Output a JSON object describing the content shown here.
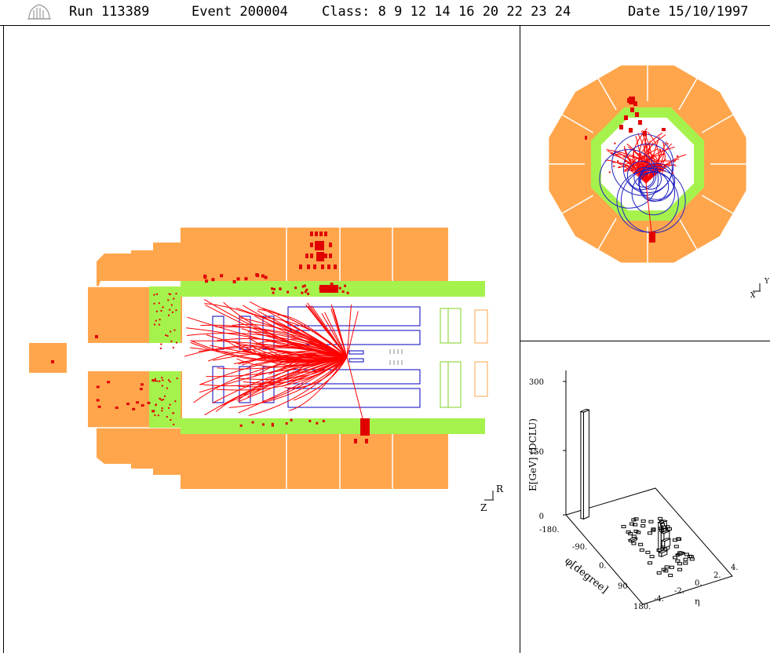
{
  "header": {
    "run": "Run 113389",
    "event": "Event 200004",
    "class": "Class: 8 9 12 14 16 20 22 23 24",
    "date": "Date 15/10/1997"
  },
  "colors": {
    "calorimeter": "#FFA64D",
    "inner_ring": "#A6F24D",
    "tracks": "#FF0000",
    "chambers": "#0000C0",
    "cells": "#E00000"
  },
  "icons": [
    "logo-icon"
  ],
  "rz_view": {
    "axis_vertical": "R",
    "axis_horizontal": "Z"
  },
  "xy_view": {
    "axis_vertical": "Y",
    "axis_horizontal": "X"
  },
  "lego_plot": {
    "z_label": "E[GeV] (DCLU)",
    "z_ticks": [
      "300",
      "150",
      "0"
    ],
    "phi_label": "φ[degree]",
    "phi_ticks": [
      "-180.",
      "-90.",
      "0.",
      "90.",
      "180."
    ],
    "eta_label": "η",
    "eta_ticks": [
      "-4.",
      "-2.",
      "0.",
      "2.",
      "4."
    ]
  },
  "chart_data": {
    "type": "heatmap",
    "title": "",
    "xlabel": "η",
    "ylabel": "φ[degree]",
    "zlabel": "E[GeV] (DCLU)",
    "zlim": [
      0,
      300
    ],
    "xlim": [
      -4,
      4
    ],
    "ylim": [
      -180,
      180
    ],
    "towers": [
      {
        "eta": -3.0,
        "phi": -150,
        "e": 240
      },
      {
        "eta": 0.5,
        "phi": 30,
        "e": 65
      },
      {
        "eta": 0.75,
        "phi": 30,
        "e": 40
      },
      {
        "eta": 1.0,
        "phi": 20,
        "e": 15
      },
      {
        "eta": 0.25,
        "phi": 45,
        "e": 8
      },
      {
        "eta": -1.0,
        "phi": -30,
        "e": 4
      },
      {
        "eta": 1.5,
        "phi": 60,
        "e": 3
      }
    ]
  }
}
